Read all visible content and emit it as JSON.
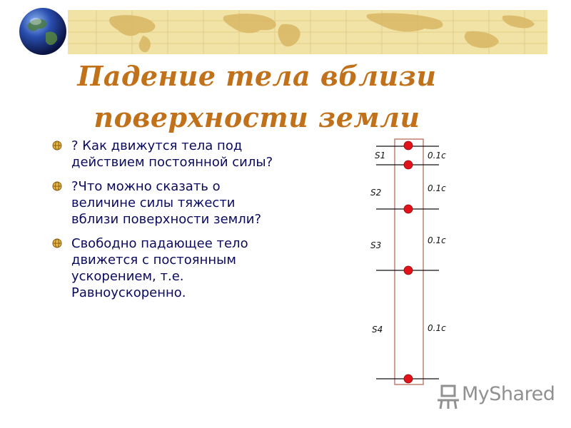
{
  "slide": {
    "title_line1": "Падение тела вблизи",
    "title_line2": "поверхности земли",
    "bullets": [
      "? Как движутся тела под действием постоянной силы?",
      "?Что можно сказать о величине силы тяжести вблизи поверхности земли?",
      "Свободно падающее тело движется с постоянным ускорением, т.е. Равноускоренно."
    ]
  },
  "diagram": {
    "segments": [
      {
        "label": "S1",
        "time": "0.1c"
      },
      {
        "label": "S2",
        "time": "0.1c"
      },
      {
        "label": "S3",
        "time": "0.1c"
      },
      {
        "label": "S4",
        "time": "0.1c"
      }
    ]
  },
  "watermark": {
    "text": "MyShared"
  },
  "colors": {
    "title": "#c0711a",
    "text": "#0a0a5e",
    "banner": "#f1e3a6",
    "dot": "#e0121a"
  }
}
